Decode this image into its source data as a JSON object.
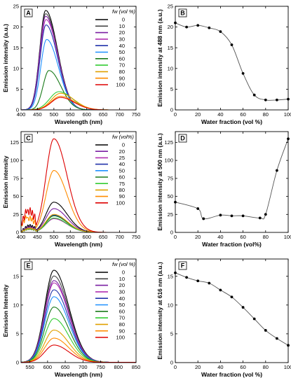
{
  "chart_data": [
    {
      "panel": "A",
      "type": "line",
      "xlabel": "Wavelength (nm)",
      "ylabel": "Emission intensity (a.u.)",
      "xlim": [
        400,
        750
      ],
      "ylim": [
        0,
        25
      ],
      "xticks": [
        400,
        450,
        500,
        550,
        600,
        650,
        700,
        750
      ],
      "yticks": [
        0,
        5,
        10,
        15,
        20,
        25
      ],
      "legend_title": "fw (vol %)",
      "legend_position": "top-right",
      "series": [
        {
          "name": "0",
          "color": "#000000",
          "peak_x": 475,
          "peak_y": 24.0
        },
        {
          "name": "10",
          "color": "#444444",
          "peak_x": 475,
          "peak_y": 23.2
        },
        {
          "name": "20",
          "color": "#7a1fa2",
          "peak_x": 475,
          "peak_y": 22.6
        },
        {
          "name": "30",
          "color": "#b02fb0",
          "peak_x": 476,
          "peak_y": 21.8
        },
        {
          "name": "40",
          "color": "#2233aa",
          "peak_x": 476,
          "peak_y": 20.5
        },
        {
          "name": "50",
          "color": "#1e90ff",
          "peak_x": 478,
          "peak_y": 17.0
        },
        {
          "name": "60",
          "color": "#1a7a1a",
          "peak_x": 485,
          "peak_y": 9.5
        },
        {
          "name": "70",
          "color": "#33cc33",
          "peak_x": 515,
          "peak_y": 4.4
        },
        {
          "name": "80",
          "color": "#e0a000",
          "peak_x": 520,
          "peak_y": 4.0
        },
        {
          "name": "90",
          "color": "#ff8c00",
          "peak_x": 520,
          "peak_y": 3.3
        },
        {
          "name": "100",
          "color": "#dd0000",
          "peak_x": 520,
          "peak_y": 3.0
        }
      ]
    },
    {
      "panel": "B",
      "type": "scatter",
      "xlabel": "Water fraction (vol %)",
      "ylabel": "Emission intensity at 488 nm (a.u.)",
      "xlim": [
        0,
        100
      ],
      "ylim": [
        0,
        25
      ],
      "xticks": [
        0,
        20,
        40,
        60,
        80,
        100
      ],
      "yticks": [
        0,
        5,
        10,
        15,
        20,
        25
      ],
      "x": [
        0,
        10,
        20,
        30,
        40,
        50,
        60,
        70,
        80,
        90,
        100
      ],
      "y": [
        21.0,
        20.0,
        20.4,
        19.8,
        18.9,
        15.7,
        8.8,
        3.6,
        2.4,
        2.4,
        2.6
      ]
    },
    {
      "panel": "C",
      "type": "line",
      "xlabel": "Wavelength (nm)",
      "ylabel": "Emission intensity",
      "xlim": [
        400,
        750
      ],
      "ylim": [
        0,
        140
      ],
      "xticks": [
        400,
        450,
        500,
        550,
        600,
        650,
        700,
        750
      ],
      "yticks": [
        0,
        25,
        50,
        75,
        100,
        125
      ],
      "legend_title": "fw (vol%)",
      "legend_position": "top-right",
      "series": [
        {
          "name": "0",
          "color": "#000000",
          "peak_x": 500,
          "peak_y": 42
        },
        {
          "name": "20",
          "color": "#7a1fa2",
          "peak_x": 500,
          "peak_y": 33
        },
        {
          "name": "25",
          "color": "#b02fb0",
          "peak_x": 500,
          "peak_y": 19
        },
        {
          "name": "40",
          "color": "#2233aa",
          "peak_x": 500,
          "peak_y": 24
        },
        {
          "name": "50",
          "color": "#1e90ff",
          "peak_x": 500,
          "peak_y": 23
        },
        {
          "name": "60",
          "color": "#1a7a1a",
          "peak_x": 500,
          "peak_y": 23
        },
        {
          "name": "75",
          "color": "#33cc33",
          "peak_x": 500,
          "peak_y": 20
        },
        {
          "name": "80",
          "color": "#e0a000",
          "peak_x": 500,
          "peak_y": 25
        },
        {
          "name": "90",
          "color": "#ff8c00",
          "peak_x": 500,
          "peak_y": 86
        },
        {
          "name": "100",
          "color": "#dd0000",
          "peak_x": 500,
          "peak_y": 130
        }
      ]
    },
    {
      "panel": "D",
      "type": "scatter",
      "xlabel": "Water fraction (vol%)",
      "ylabel": "Emission intensity at 500 nm (a.u.)",
      "xlim": [
        0,
        100
      ],
      "ylim": [
        0,
        140
      ],
      "xticks": [
        0,
        20,
        40,
        60,
        80,
        100
      ],
      "yticks": [
        0,
        25,
        50,
        75,
        100,
        125
      ],
      "x": [
        0,
        20,
        25,
        40,
        50,
        60,
        75,
        80,
        90,
        100
      ],
      "y": [
        42,
        33,
        19,
        24,
        23,
        23,
        20,
        25,
        86,
        130
      ]
    },
    {
      "panel": "E",
      "type": "line",
      "xlabel": "Wavelength (nm)",
      "ylabel": "Emission Intensity",
      "xlim": [
        525,
        850
      ],
      "ylim": [
        0,
        18
      ],
      "xticks": [
        550,
        600,
        650,
        700,
        750,
        800,
        850
      ],
      "yticks": [
        0,
        5,
        10,
        15
      ],
      "legend_title": "fw (vol %)",
      "legend_position": "top-right",
      "series": [
        {
          "name": "0",
          "color": "#000000",
          "peak_x": 618,
          "peak_y": 16.0
        },
        {
          "name": "10",
          "color": "#444444",
          "peak_x": 618,
          "peak_y": 15.0
        },
        {
          "name": "20",
          "color": "#7a1fa2",
          "peak_x": 618,
          "peak_y": 14.2
        },
        {
          "name": "30",
          "color": "#b02fb0",
          "peak_x": 618,
          "peak_y": 13.8
        },
        {
          "name": "40",
          "color": "#2233aa",
          "peak_x": 618,
          "peak_y": 12.6
        },
        {
          "name": "50",
          "color": "#1e90ff",
          "peak_x": 618,
          "peak_y": 11.4
        },
        {
          "name": "60",
          "color": "#1a7a1a",
          "peak_x": 618,
          "peak_y": 9.6
        },
        {
          "name": "70",
          "color": "#33cc33",
          "peak_x": 618,
          "peak_y": 7.6
        },
        {
          "name": "80",
          "color": "#e0a000",
          "peak_x": 618,
          "peak_y": 5.6
        },
        {
          "name": "90",
          "color": "#ff8c00",
          "peak_x": 618,
          "peak_y": 4.2
        },
        {
          "name": "100",
          "color": "#dd0000",
          "peak_x": 618,
          "peak_y": 3.0
        }
      ]
    },
    {
      "panel": "F",
      "type": "scatter",
      "xlabel": "Water fraction (vol %)",
      "ylabel": "Emission intensity at 616 nm (a.u.)",
      "xlim": [
        0,
        100
      ],
      "ylim": [
        0,
        18
      ],
      "xticks": [
        0,
        20,
        40,
        60,
        80,
        100
      ],
      "yticks": [
        0,
        5,
        10,
        15
      ],
      "x": [
        0,
        10,
        20,
        30,
        40,
        50,
        60,
        70,
        80,
        90,
        100
      ],
      "y": [
        15.6,
        14.8,
        14.2,
        13.8,
        12.6,
        11.4,
        9.6,
        7.6,
        5.6,
        4.2,
        3.0
      ]
    }
  ]
}
